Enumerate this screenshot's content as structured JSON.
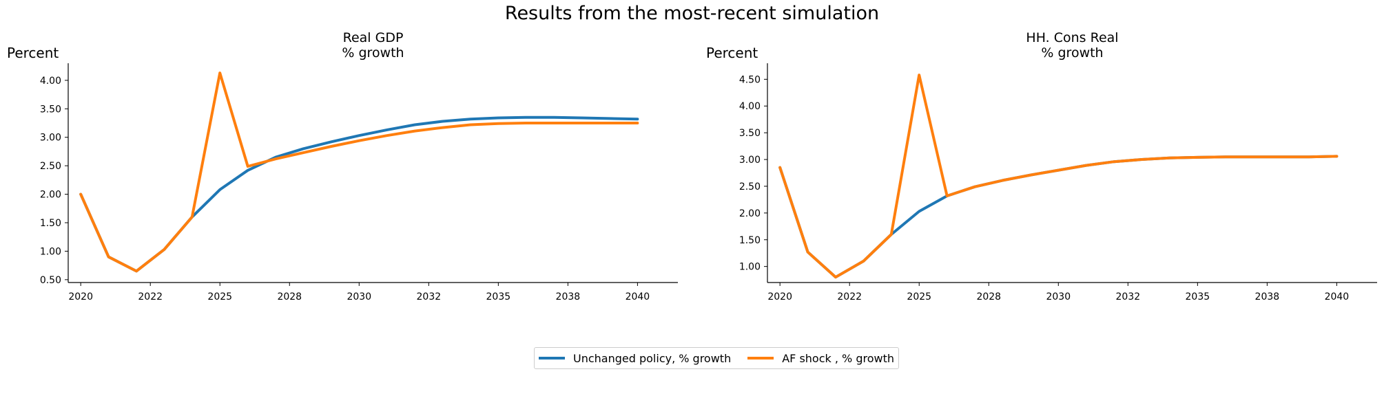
{
  "figure": {
    "title": "Results from the most-recent simulation"
  },
  "legend": [
    {
      "label": "Unchanged policy, % growth",
      "color": "#1f77b4"
    },
    {
      "label": "AF shock , % growth",
      "color": "#ff7f0e"
    }
  ],
  "chart_data": [
    {
      "type": "line",
      "title": "Real GDP\n% growth",
      "ylabel": "Percent",
      "xlim": [
        2019.55,
        2041.45
      ],
      "ylim": [
        0.45,
        4.3
      ],
      "x_tick_values": [
        2020,
        2022.5,
        2025,
        2027.5,
        2030,
        2032.5,
        2035,
        2037.5,
        2040
      ],
      "x_tick_labels": [
        "2020",
        "2022",
        "2025",
        "2028",
        "2030",
        "2032",
        "2035",
        "2038",
        "2040"
      ],
      "y_ticks": [
        0.5,
        1.0,
        1.5,
        2.0,
        2.5,
        3.0,
        3.5,
        4.0
      ],
      "y_tick_labels": [
        "0.50",
        "1.00",
        "1.50",
        "2.00",
        "2.50",
        "3.00",
        "3.50",
        "4.00"
      ],
      "x": [
        2020,
        2021,
        2022,
        2023,
        2024,
        2025,
        2026,
        2027,
        2028,
        2029,
        2030,
        2031,
        2032,
        2033,
        2034,
        2035,
        2036,
        2037,
        2038,
        2039,
        2040
      ],
      "series": [
        {
          "name": "Unchanged policy, % growth",
          "color": "#1f77b4",
          "values": [
            2.0,
            0.9,
            0.65,
            1.03,
            1.6,
            2.08,
            2.42,
            2.65,
            2.8,
            2.92,
            3.03,
            3.13,
            3.22,
            3.28,
            3.32,
            3.34,
            3.35,
            3.35,
            3.34,
            3.33,
            3.32
          ]
        },
        {
          "name": "AF shock , % growth",
          "color": "#ff7f0e",
          "values": [
            2.0,
            0.9,
            0.65,
            1.03,
            1.6,
            4.13,
            2.49,
            2.62,
            2.73,
            2.84,
            2.94,
            3.03,
            3.11,
            3.17,
            3.22,
            3.24,
            3.25,
            3.25,
            3.25,
            3.25,
            3.25
          ]
        }
      ]
    },
    {
      "type": "line",
      "title": "HH. Cons Real\n% growth",
      "ylabel": "Percent",
      "xlim": [
        2019.55,
        2041.45
      ],
      "ylim": [
        0.7,
        4.8
      ],
      "x_tick_values": [
        2020,
        2022.5,
        2025,
        2027.5,
        2030,
        2032.5,
        2035,
        2037.5,
        2040
      ],
      "x_tick_labels": [
        "2020",
        "2022",
        "2025",
        "2028",
        "2030",
        "2032",
        "2035",
        "2038",
        "2040"
      ],
      "y_ticks": [
        1.0,
        1.5,
        2.0,
        2.5,
        3.0,
        3.5,
        4.0,
        4.5
      ],
      "y_tick_labels": [
        "1.00",
        "1.50",
        "2.00",
        "2.50",
        "3.00",
        "3.50",
        "4.00",
        "4.50"
      ],
      "x": [
        2020,
        2021,
        2022,
        2023,
        2024,
        2025,
        2026,
        2027,
        2028,
        2029,
        2030,
        2031,
        2032,
        2033,
        2034,
        2035,
        2036,
        2037,
        2038,
        2039,
        2040
      ],
      "series": [
        {
          "name": "Unchanged policy, % growth",
          "color": "#1f77b4",
          "values": [
            2.85,
            1.27,
            0.8,
            1.1,
            1.6,
            2.03,
            2.32,
            2.49,
            2.61,
            2.71,
            2.8,
            2.89,
            2.96,
            3.0,
            3.03,
            3.04,
            3.05,
            3.05,
            3.05,
            3.05,
            3.06
          ]
        },
        {
          "name": "AF shock , % growth",
          "color": "#ff7f0e",
          "values": [
            2.85,
            1.27,
            0.8,
            1.1,
            1.6,
            4.58,
            2.32,
            2.49,
            2.61,
            2.71,
            2.8,
            2.89,
            2.96,
            3.0,
            3.03,
            3.04,
            3.05,
            3.05,
            3.05,
            3.05,
            3.06
          ]
        }
      ]
    }
  ]
}
